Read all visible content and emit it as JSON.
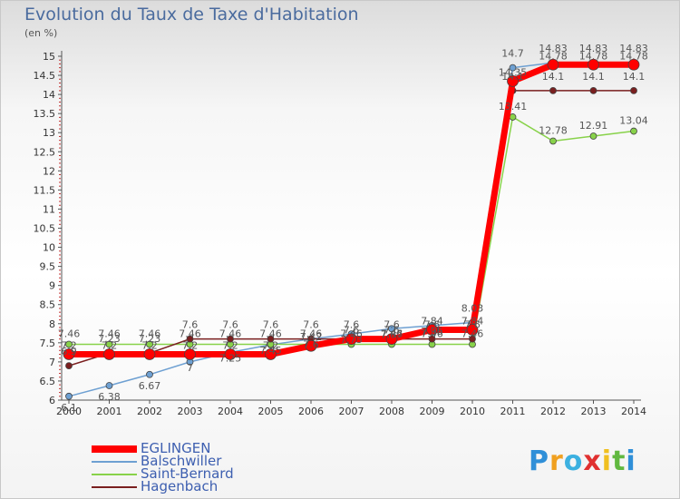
{
  "chart_data": {
    "type": "line",
    "title": "Evolution du Taux de Taxe d'Habitation",
    "ylabel": "(en %)",
    "x": [
      "2000",
      "2001",
      "2002",
      "2003",
      "2004",
      "2005",
      "2006",
      "2007",
      "2008",
      "2009",
      "2010",
      "2011",
      "2012",
      "2013",
      "2014"
    ],
    "ylim": [
      6,
      15
    ],
    "yticks": [
      "6",
      "6.5",
      "7",
      "7.5",
      "8",
      "8.5",
      "9",
      "9.5",
      "10",
      "10.5",
      "11",
      "11.5",
      "12",
      "12.5",
      "13",
      "13.5",
      "14",
      "14.5",
      "15"
    ],
    "grid": false,
    "legend_position": "bottom-left",
    "series": [
      {
        "name": "EGLINGEN",
        "color": "#ff0000",
        "values": [
          7.2,
          7.2,
          7.2,
          7.2,
          7.2,
          7.2,
          7.42,
          7.6,
          7.6,
          7.84,
          7.84,
          14.35,
          14.78,
          14.78,
          14.78
        ],
        "labels": [
          "7.2",
          "7.2",
          "7.2",
          "7.2",
          "7.2",
          "7.2",
          "7.42",
          "7.6",
          "7.6",
          "7.84",
          "7.84",
          "14.35",
          "14.78",
          "14.78",
          "14.78"
        ]
      },
      {
        "name": "Balschwiller",
        "color": "#6ea0d2",
        "values": [
          6.1,
          6.38,
          6.67,
          7.0,
          7.25,
          7.45,
          7.6,
          7.73,
          7.87,
          7.95,
          8.03,
          14.7,
          14.83,
          14.83,
          14.83
        ],
        "labels": [
          "6.1",
          "6.38",
          "6.67",
          "7",
          "7.25",
          "7.45",
          "7.6",
          "7.73",
          "7.87",
          "7.95",
          "8.03",
          "14.7",
          "14.83",
          "14.83",
          "14.83"
        ]
      },
      {
        "name": "Saint-Bernard",
        "color": "#88d24a",
        "values": [
          7.46,
          7.46,
          7.46,
          7.46,
          7.46,
          7.46,
          7.46,
          7.46,
          7.46,
          7.46,
          7.46,
          13.41,
          12.78,
          12.91,
          13.04
        ],
        "labels": [
          "7.46",
          "7.46",
          "7.46",
          "7.46",
          "7.46",
          "7.46",
          "7.46",
          "7.46",
          "7.46",
          "7.46",
          "7.46",
          "13.41",
          "12.78",
          "12.91",
          "13.04"
        ]
      },
      {
        "name": "Hagenbach",
        "color": "#7a1f1f",
        "values": [
          6.9,
          7.23,
          7.23,
          7.6,
          7.6,
          7.6,
          7.6,
          7.6,
          7.6,
          7.6,
          7.6,
          14.1,
          14.1,
          14.1,
          14.1
        ],
        "labels": [
          "6.9",
          "7.23",
          "7.23",
          "7.6",
          "7.6",
          "7.6",
          "7.6",
          "7.6",
          "7.6",
          "7.6",
          "7.6",
          "14.1",
          "14.1",
          "14.1",
          "14.1"
        ]
      }
    ]
  },
  "logo": {
    "letters": [
      {
        "ch": "P",
        "color": "#2f8fd8"
      },
      {
        "ch": "r",
        "color": "#f0a020"
      },
      {
        "ch": "o",
        "color": "#3cb0e0"
      },
      {
        "ch": "x",
        "color": "#e03030"
      },
      {
        "ch": "i",
        "color": "#f0c020"
      },
      {
        "ch": "t",
        "color": "#60b840"
      },
      {
        "ch": "i",
        "color": "#2f8fd8"
      }
    ]
  }
}
